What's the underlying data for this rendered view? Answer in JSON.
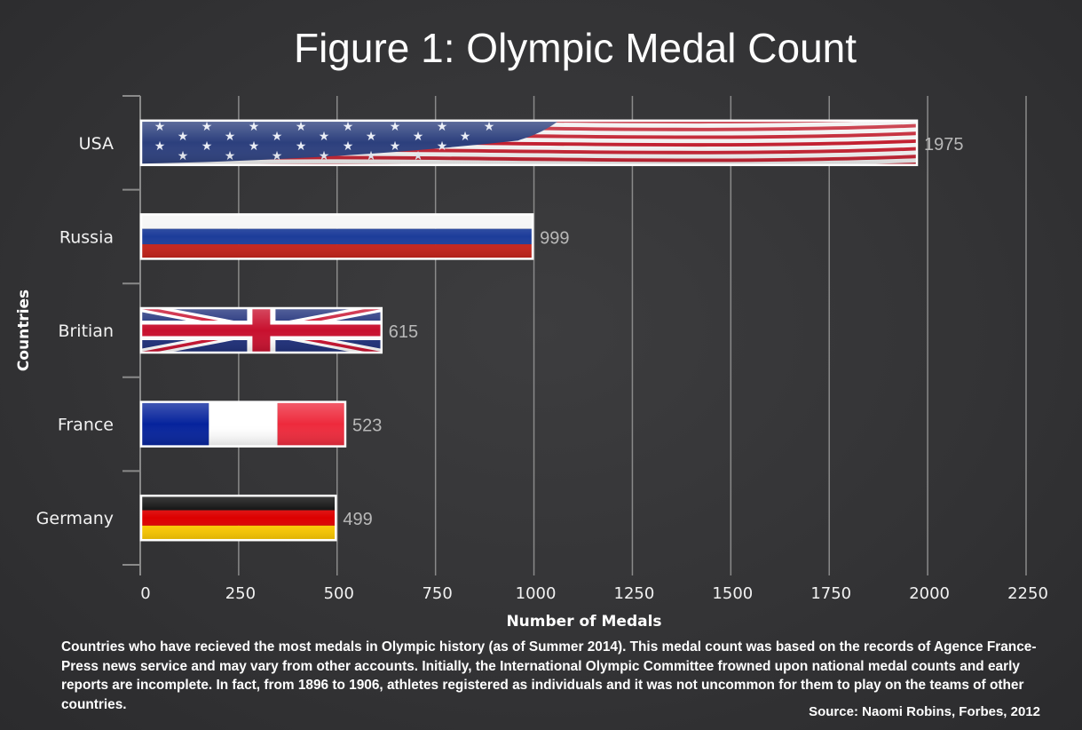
{
  "chart_data": {
    "type": "bar",
    "orientation": "horizontal",
    "title": "Figure 1: Olympic Medal Count",
    "xlabel": "Number of Medals",
    "ylabel": "Countries",
    "categories": [
      "USA",
      "Russia",
      "Britian",
      "France",
      "Germany"
    ],
    "values": [
      1975,
      999,
      615,
      523,
      499
    ],
    "xlim": [
      0,
      2250
    ],
    "xticks": [
      0,
      250,
      500,
      750,
      1000,
      1250,
      1500,
      1750,
      2000,
      2250
    ],
    "grid": true,
    "bar_fills": [
      "usa-flag",
      "russia-flag",
      "britain-flag",
      "france-flag",
      "germany-flag"
    ]
  },
  "caption": "Countries who have recieved the most medals in Olympic history (as of Summer 2014).  This medal count was based on the records of Agence France-Press news service and may vary from other accounts.  Initially, the International Olympic Committee frowned upon national medal counts and early reports are incomplete.  In fact, from 1896 to 1906, athletes registered as individuals and it was not uncommon for them to play on the teams of other countries.",
  "source": "Source: Naomi Robins, Forbes, 2012",
  "colors": {
    "background": "#353537",
    "grid": "#8a8a8a",
    "text": "#ffffff",
    "value_label": "#b8b8b8"
  }
}
